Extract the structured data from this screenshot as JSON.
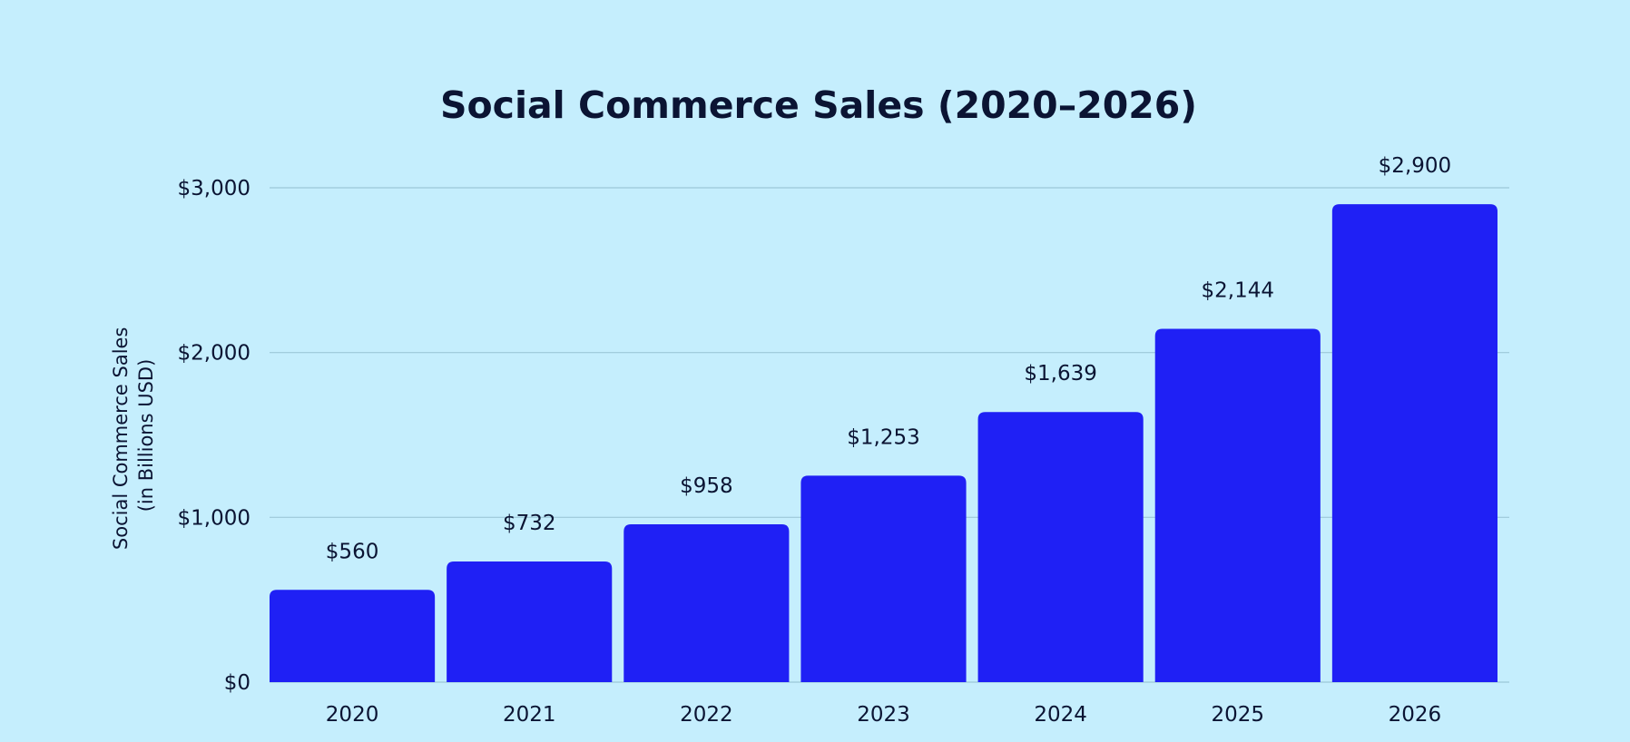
{
  "chart_data": {
    "type": "bar",
    "title": "Social Commerce Sales (2020–2026)",
    "xlabel": "",
    "ylabel": "Social Commerce Sales\n(in Billions USD)",
    "ylabel_lines": [
      "Social Commerce Sales",
      "(in Billions USD)"
    ],
    "categories": [
      "2020",
      "2021",
      "2022",
      "2023",
      "2024",
      "2025",
      "2026"
    ],
    "values": [
      560,
      732,
      958,
      1253,
      1639,
      2144,
      2900
    ],
    "data_labels": [
      "$560",
      "$732",
      "$958",
      "$1,253",
      "$1,639",
      "$2,144",
      "$2,900"
    ],
    "yticks": [
      0,
      1000,
      2000,
      3000
    ],
    "ytick_labels": [
      "$0",
      "$1,000",
      "$2,000",
      "$3,000"
    ],
    "ylim": [
      0,
      3000
    ],
    "grid": true,
    "legend": "none",
    "colors": {
      "bar": "#1f20f5",
      "background": "#c5eefd",
      "text": "#0b1433",
      "grid": "#9cc8d8"
    }
  }
}
